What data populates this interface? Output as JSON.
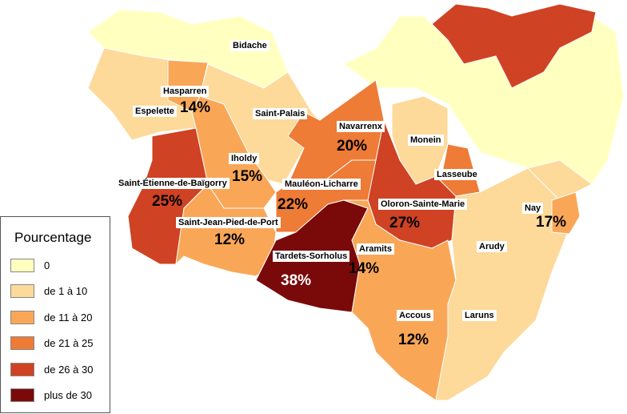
{
  "places": [
    "Bidache",
    "Hasparren",
    "Espelette",
    "Saint-Palais",
    "Navarrenx",
    "Monein",
    "Iholdy",
    "Lasseube",
    "Saint-Étienne-de-Baïgorry",
    "Mauléon-Licharre",
    "Oloron-Sainte-Marie",
    "Nay",
    "Saint-Jean-Pied-de-Port",
    "Aramits",
    "Arudy",
    "Tardets-Sorholus",
    "Accous",
    "Laruns"
  ],
  "percentages": [
    "14%",
    "20%",
    "15%",
    "25%",
    "22%",
    "27%",
    "17%",
    "12%",
    "14%",
    "38%",
    "12%"
  ],
  "legend": {
    "title": "Pourcentage",
    "items": [
      {
        "label": "0",
        "color": "#ffffc0"
      },
      {
        "label": "de 1 à 10",
        "color": "#fdd99a"
      },
      {
        "label": "de 11 à 20",
        "color": "#f9a757"
      },
      {
        "label": "de 21 à 25",
        "color": "#ee7b36"
      },
      {
        "label": "de 26 à 30",
        "color": "#cf4223"
      },
      {
        "label": "plus de 30",
        "color": "#7a0a0a"
      }
    ]
  }
}
